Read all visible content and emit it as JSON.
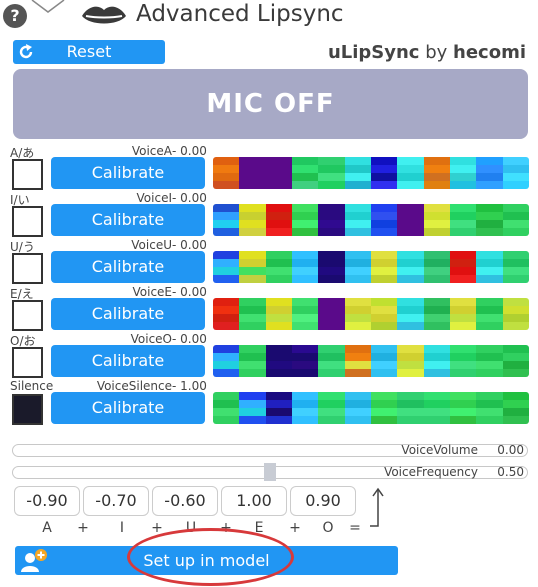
{
  "header": {
    "title": "Advanced Lipsync",
    "help_glyph": "?"
  },
  "toolbar": {
    "reset_label": "Reset"
  },
  "brand": {
    "product": "uLipSync",
    "by": "by",
    "author": "hecomi"
  },
  "mic": {
    "label": "MIC OFF"
  },
  "phonemes": [
    {
      "label": "A/あ",
      "voice": "VoiceA",
      "value": "0.00",
      "calibrate": "Calibrate",
      "box_filled": false,
      "spectrum": [
        [
          "#e06010",
          "#f07a10",
          "#e06a10",
          "#d05020"
        ],
        [
          "#5a0a8a",
          "#5a0a8a",
          "#5a0a8a",
          "#5a0a8a"
        ],
        [
          "#5a0a8a",
          "#5a0a8a",
          "#5a0a8a",
          "#5a0a8a"
        ],
        [
          "#20c860",
          "#30e070",
          "#20c050",
          "#40d080"
        ],
        [
          "#30d070",
          "#20c860",
          "#40e080",
          "#20d060"
        ],
        [
          "#30e0e0",
          "#20c8c8",
          "#40f0f0",
          "#20b0d0"
        ],
        [
          "#1010c0",
          "#2020e0",
          "#1010a0",
          "#3030f0"
        ],
        [
          "#40f0f0",
          "#30e0e0",
          "#20d0d0",
          "#40f0f0"
        ],
        [
          "#e07010",
          "#f08010",
          "#d07020",
          "#e08010"
        ],
        [
          "#30e0e0",
          "#40f0f0",
          "#30d0d0",
          "#20c0e0"
        ],
        [
          "#20a0ff",
          "#3090ff",
          "#2080f0",
          "#30a0ff"
        ],
        [
          "#40d0ff",
          "#30c0f0",
          "#40e0ff",
          "#30d0ff"
        ]
      ]
    },
    {
      "label": "I/い",
      "voice": "VoiceI",
      "value": "0.00",
      "calibrate": "Calibrate",
      "box_filled": false,
      "spectrum": [
        [
          "#2050d0",
          "#30a0ff",
          "#20d0f0",
          "#2060e0"
        ],
        [
          "#e0e020",
          "#c8d030",
          "#e0e020",
          "#d0d040"
        ],
        [
          "#e01010",
          "#d02010",
          "#e01010",
          "#f02020"
        ],
        [
          "#40e060",
          "#30d050",
          "#40f070",
          "#30c040"
        ],
        [
          "#2a0a80",
          "#2a0a80",
          "#300a90",
          "#2a0a80"
        ],
        [
          "#30e0e0",
          "#20d0d0",
          "#40f0f0",
          "#30c0e0"
        ],
        [
          "#2040f0",
          "#3050f0",
          "#1040e0",
          "#2050f0"
        ],
        [
          "#5a0a8a",
          "#5a0a8a",
          "#5a0a8a",
          "#5a0a8a"
        ],
        [
          "#e0e040",
          "#d0e030",
          "#e0f040",
          "#c0d030"
        ],
        [
          "#30e070",
          "#20d060",
          "#40e080",
          "#30d070"
        ],
        [
          "#20c040",
          "#30d050",
          "#20b040",
          "#30c050"
        ],
        [
          "#30d060",
          "#20c050",
          "#40e070",
          "#30d060"
        ]
      ]
    },
    {
      "label": "U/う",
      "voice": "VoiceU",
      "value": "0.00",
      "calibrate": "Calibrate",
      "box_filled": false,
      "spectrum": [
        [
          "#2040e0",
          "#30b0ff",
          "#20d0e0",
          "#2060f0"
        ],
        [
          "#e0e020",
          "#d0d030",
          "#40e060",
          "#c0d040"
        ],
        [
          "#30d060",
          "#20c050",
          "#40e070",
          "#30d060"
        ],
        [
          "#30c0ff",
          "#20b0f0",
          "#40d0ff",
          "#30c0ff"
        ],
        [
          "#1a0a70",
          "#1a0a70",
          "#200a80",
          "#1a0a70"
        ],
        [
          "#30c0f0",
          "#20b0e0",
          "#40d0ff",
          "#30c0f0"
        ],
        [
          "#e0e040",
          "#d0d030",
          "#e0f040",
          "#c0d030"
        ],
        [
          "#30e0e0",
          "#20d0d0",
          "#40f0f0",
          "#30c0e0"
        ],
        [
          "#30c070",
          "#20b060",
          "#40d080",
          "#30c070"
        ],
        [
          "#e01010",
          "#d02010",
          "#e01010",
          "#f02020"
        ],
        [
          "#30e0e0",
          "#20d0d0",
          "#40f0f0",
          "#30c0e0"
        ],
        [
          "#30d070",
          "#20c060",
          "#40e080",
          "#30d070"
        ]
      ]
    },
    {
      "label": "E/え",
      "voice": "VoiceE",
      "value": "0.00",
      "calibrate": "Calibrate",
      "box_filled": false,
      "spectrum": [
        [
          "#e02010",
          "#f03010",
          "#d02010",
          "#e02020"
        ],
        [
          "#30d060",
          "#20c050",
          "#40e070",
          "#30d060"
        ],
        [
          "#e0e020",
          "#d0d030",
          "#c0e040",
          "#e0e020"
        ],
        [
          "#40e070",
          "#30d060",
          "#50f080",
          "#40e070"
        ],
        [
          "#5a0a8a",
          "#5a0a8a",
          "#5a0a8a",
          "#5a0a8a"
        ],
        [
          "#e0e040",
          "#d0d030",
          "#c0e040",
          "#e0f040"
        ],
        [
          "#c0e030",
          "#e0e040",
          "#d0d030",
          "#b0d030"
        ],
        [
          "#30e0e0",
          "#20d0d0",
          "#40f0f0",
          "#30c0e0"
        ],
        [
          "#30c060",
          "#20b050",
          "#40d070",
          "#30c060"
        ],
        [
          "#e0e040",
          "#d0d030",
          "#c0e040",
          "#e0f040"
        ],
        [
          "#30d060",
          "#20c050",
          "#40e070",
          "#30d060"
        ],
        [
          "#c0e040",
          "#d0e030",
          "#b0d030",
          "#c0e040"
        ]
      ]
    },
    {
      "label": "O/お",
      "voice": "VoiceO",
      "value": "0.00",
      "calibrate": "Calibrate",
      "box_filled": false,
      "spectrum": [
        [
          "#2040e0",
          "#30b0ff",
          "#20d0e0",
          "#2060f0"
        ],
        [
          "#30d060",
          "#20c050",
          "#40e070",
          "#30d060"
        ],
        [
          "#1a0a70",
          "#1a0a70",
          "#200a80",
          "#1a0a70"
        ],
        [
          "#2a0a90",
          "#1a0a70",
          "#2a0a80",
          "#1a0a70"
        ],
        [
          "#30d070",
          "#20c060",
          "#40e080",
          "#30d070"
        ],
        [
          "#e07010",
          "#f08010",
          "#e0e040",
          "#d07020"
        ],
        [
          "#30c0f0",
          "#20b0e0",
          "#40d0ff",
          "#30c0f0"
        ],
        [
          "#e0e040",
          "#d0d030",
          "#c0e040",
          "#e0f040"
        ],
        [
          "#30e0e0",
          "#20d0d0",
          "#40f0f0",
          "#30c0e0"
        ],
        [
          "#30e070",
          "#20d060",
          "#40e080",
          "#30d070"
        ],
        [
          "#30d060",
          "#20c050",
          "#40e070",
          "#30d060"
        ],
        [
          "#20c050",
          "#30d060",
          "#20b040",
          "#30c050"
        ]
      ]
    },
    {
      "label": "Silence",
      "voice": "VoiceSilence",
      "value": "1.00",
      "calibrate": "Calibrate",
      "box_filled": true,
      "spectrum": [
        [
          "#30d060",
          "#20c050",
          "#40e070",
          "#30d060"
        ],
        [
          "#2040f0",
          "#30b0ff",
          "#20d0e0",
          "#2050f0"
        ],
        [
          "#1a0a80",
          "#2020c0",
          "#1a0a70",
          "#2030d0"
        ],
        [
          "#30c0ff",
          "#20b0f0",
          "#40d0ff",
          "#30c0ff"
        ],
        [
          "#30e070",
          "#20d060",
          "#40e080",
          "#30d070"
        ],
        [
          "#30c0f0",
          "#20b0e0",
          "#40d0ff",
          "#30c0f0"
        ],
        [
          "#40e060",
          "#30d050",
          "#40f070",
          "#30c040"
        ],
        [
          "#30d070",
          "#20c060",
          "#40e080",
          "#30d070"
        ],
        [
          "#30e070",
          "#20d060",
          "#40e080",
          "#30d070"
        ],
        [
          "#40e060",
          "#30d050",
          "#40f070",
          "#30c040"
        ],
        [
          "#30d060",
          "#20c050",
          "#40e070",
          "#30d060"
        ],
        [
          "#20c040",
          "#30d050",
          "#20b040",
          "#30c050"
        ]
      ]
    }
  ],
  "volume": {
    "label": "VoiceVolume",
    "value": "0.00",
    "level": 0.0
  },
  "frequency": {
    "label": "VoiceFrequency",
    "value": "0.50",
    "level": 0.5
  },
  "weights": {
    "values": [
      "-0.90",
      "-0.70",
      "-0.60",
      "1.00",
      "0.90"
    ],
    "formula": [
      "A",
      "+",
      "I",
      "+",
      "U",
      "+",
      "E",
      "+",
      "O",
      "="
    ]
  },
  "setup": {
    "label": "Set up in model"
  },
  "colors": {
    "accent": "#2196f3",
    "mic_bg": "#a7a9c6",
    "highlight_ring": "#d7393b"
  }
}
